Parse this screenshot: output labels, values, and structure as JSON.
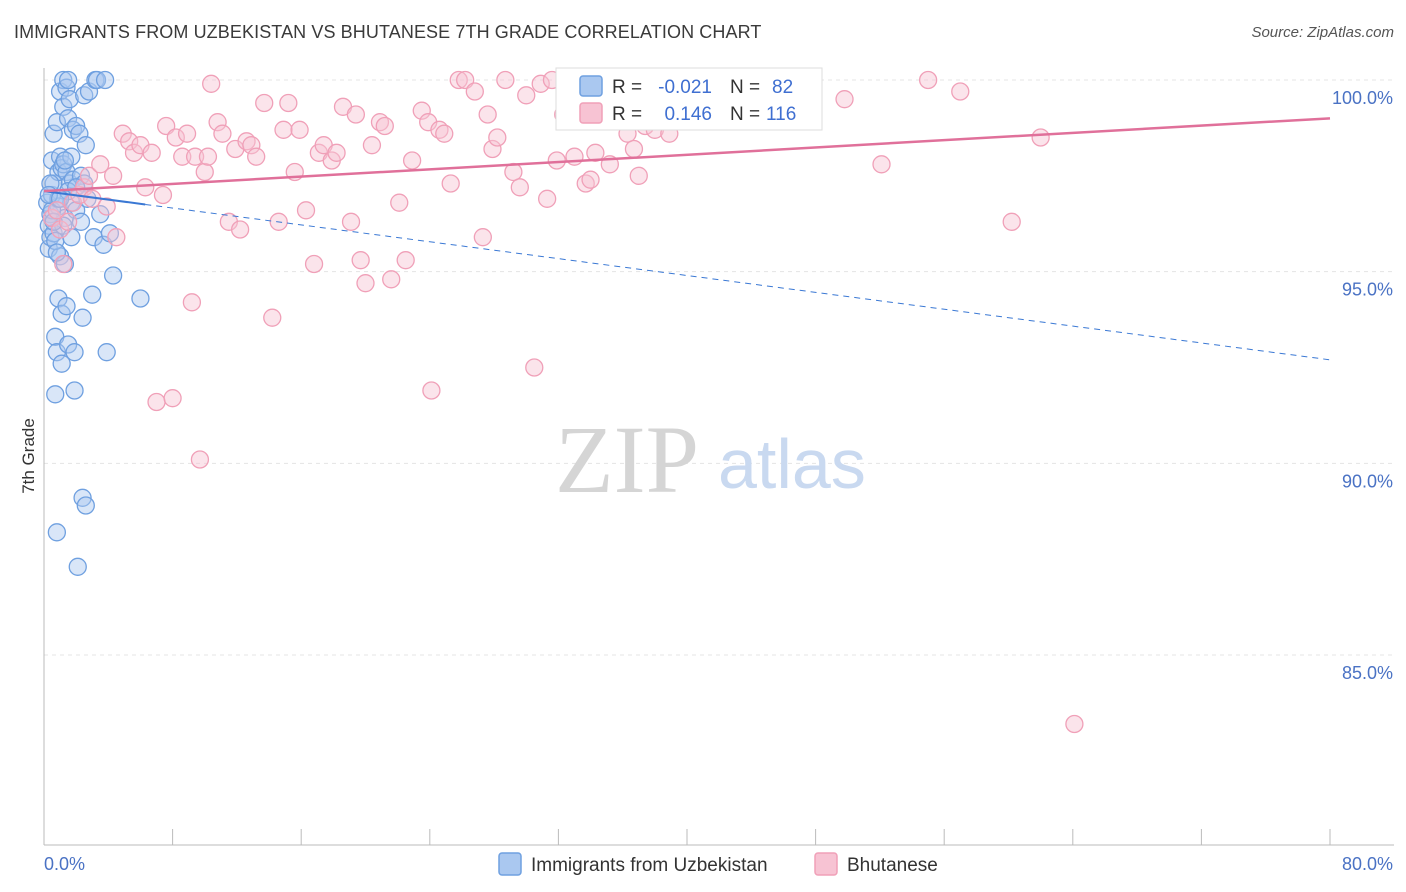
{
  "title": "IMMIGRANTS FROM UZBEKISTAN VS BHUTANESE 7TH GRADE CORRELATION CHART",
  "source": "Source: ZipAtlas.com",
  "watermark": {
    "zip": "ZIP",
    "atlas": "atlas"
  },
  "chart_data": {
    "type": "scatter",
    "title": "IMMIGRANTS FROM UZBEKISTAN VS BHUTANESE 7TH GRADE CORRELATION CHART",
    "xlabel": "",
    "ylabel": "7th Grade",
    "xlim": [
      0,
      80
    ],
    "ylim": [
      80.5,
      101.0
    ],
    "x_tick_labels": [
      "0.0%",
      "80.0%"
    ],
    "y_ticks": [
      85,
      90,
      95,
      100
    ],
    "y_tick_labels": [
      "85.0%",
      "90.0%",
      "95.0%",
      "100.0%"
    ],
    "grid": true,
    "legend": {
      "position": "top-center",
      "rows": [
        {
          "r_label": "R =",
          "r": "-0.021",
          "n_label": "N =",
          "n": "82"
        },
        {
          "r_label": "R =",
          "r": "0.146",
          "n_label": "N =",
          "n": "116"
        }
      ]
    },
    "series": [
      {
        "name": "Immigrants from Uzbekistan",
        "color": "#6fa0e0",
        "fill": "#aac8f0",
        "trend": {
          "x0": 0.0,
          "y0": 97.1,
          "x1": 80.0,
          "y1": 92.7,
          "solid_until": 6.3,
          "color": "#3a78d4"
        },
        "points": [
          [
            0.2,
            96.8
          ],
          [
            0.3,
            96.2
          ],
          [
            0.3,
            95.6
          ],
          [
            0.4,
            96.5
          ],
          [
            0.4,
            95.9
          ],
          [
            0.5,
            97.9
          ],
          [
            0.5,
            97.0
          ],
          [
            0.5,
            96.4
          ],
          [
            0.6,
            98.6
          ],
          [
            0.6,
            97.3
          ],
          [
            0.6,
            96.0
          ],
          [
            0.7,
            93.3
          ],
          [
            0.7,
            91.8
          ],
          [
            0.8,
            98.9
          ],
          [
            0.8,
            92.9
          ],
          [
            0.8,
            88.2
          ],
          [
            0.9,
            97.6
          ],
          [
            0.9,
            96.7
          ],
          [
            0.9,
            94.3
          ],
          [
            1.0,
            99.7
          ],
          [
            1.0,
            98.0
          ],
          [
            1.0,
            95.4
          ],
          [
            1.1,
            97.7
          ],
          [
            1.1,
            93.9
          ],
          [
            1.1,
            92.6
          ],
          [
            1.2,
            100.0
          ],
          [
            1.2,
            99.3
          ],
          [
            1.2,
            97.8
          ],
          [
            1.3,
            96.4
          ],
          [
            1.3,
            95.2
          ],
          [
            1.4,
            99.8
          ],
          [
            1.4,
            97.6
          ],
          [
            1.4,
            94.1
          ],
          [
            1.5,
            100.0
          ],
          [
            1.5,
            99.0
          ],
          [
            1.5,
            93.1
          ],
          [
            1.6,
            99.5
          ],
          [
            1.6,
            97.3
          ],
          [
            1.7,
            98.0
          ],
          [
            1.7,
            96.8
          ],
          [
            1.8,
            98.7
          ],
          [
            1.8,
            97.4
          ],
          [
            1.9,
            92.9
          ],
          [
            1.9,
            91.9
          ],
          [
            2.0,
            98.8
          ],
          [
            2.0,
            96.6
          ],
          [
            2.1,
            87.3
          ],
          [
            2.2,
            98.6
          ],
          [
            2.3,
            97.5
          ],
          [
            2.3,
            96.3
          ],
          [
            2.4,
            89.1
          ],
          [
            2.4,
            93.8
          ],
          [
            2.5,
            99.6
          ],
          [
            2.5,
            97.3
          ],
          [
            2.6,
            98.3
          ],
          [
            2.6,
            88.9
          ],
          [
            2.7,
            96.9
          ],
          [
            2.8,
            99.7
          ],
          [
            3.0,
            94.4
          ],
          [
            3.1,
            95.9
          ],
          [
            3.2,
            100.0
          ],
          [
            3.3,
            100.0
          ],
          [
            3.5,
            96.5
          ],
          [
            3.7,
            95.7
          ],
          [
            3.8,
            100.0
          ],
          [
            3.9,
            92.9
          ],
          [
            4.1,
            96.0
          ],
          [
            4.3,
            94.9
          ],
          [
            0.4,
            97.3
          ],
          [
            0.5,
            96.6
          ],
          [
            0.7,
            95.8
          ],
          [
            0.9,
            96.9
          ],
          [
            1.2,
            96.2
          ],
          [
            1.5,
            97.1
          ],
          [
            1.7,
            95.9
          ],
          [
            0.3,
            97.0
          ],
          [
            0.6,
            96.3
          ],
          [
            0.8,
            95.5
          ],
          [
            1.0,
            96.9
          ],
          [
            1.3,
            97.9
          ],
          [
            6.0,
            94.3
          ],
          [
            2.0,
            97.2
          ]
        ]
      },
      {
        "name": "Bhutanese",
        "color": "#f0a0b8",
        "fill": "#f7c3d3",
        "trend": {
          "x0": 0.0,
          "y0": 97.1,
          "x1": 80.0,
          "y1": 99.0,
          "color": "#e0709a"
        },
        "points": [
          [
            0.5,
            96.4
          ],
          [
            0.8,
            96.6
          ],
          [
            1.0,
            96.1
          ],
          [
            1.2,
            95.2
          ],
          [
            1.5,
            96.3
          ],
          [
            1.8,
            96.8
          ],
          [
            2.2,
            97.0
          ],
          [
            2.5,
            97.2
          ],
          [
            2.8,
            97.5
          ],
          [
            3.0,
            96.9
          ],
          [
            3.5,
            97.8
          ],
          [
            3.9,
            96.7
          ],
          [
            4.3,
            97.5
          ],
          [
            4.5,
            95.9
          ],
          [
            4.9,
            98.6
          ],
          [
            5.3,
            98.4
          ],
          [
            5.6,
            98.1
          ],
          [
            6.0,
            98.3
          ],
          [
            6.3,
            97.2
          ],
          [
            6.7,
            98.1
          ],
          [
            7.0,
            91.6
          ],
          [
            7.4,
            97.0
          ],
          [
            7.6,
            98.8
          ],
          [
            8.0,
            91.7
          ],
          [
            8.2,
            98.5
          ],
          [
            8.6,
            98.0
          ],
          [
            8.9,
            98.6
          ],
          [
            9.2,
            94.2
          ],
          [
            9.4,
            98.0
          ],
          [
            9.7,
            90.1
          ],
          [
            10.0,
            97.6
          ],
          [
            10.2,
            98.0
          ],
          [
            10.4,
            99.9
          ],
          [
            10.8,
            98.9
          ],
          [
            11.1,
            98.6
          ],
          [
            11.5,
            96.3
          ],
          [
            11.9,
            98.2
          ],
          [
            12.2,
            96.1
          ],
          [
            12.6,
            98.4
          ],
          [
            12.9,
            98.3
          ],
          [
            13.2,
            98.0
          ],
          [
            13.7,
            99.4
          ],
          [
            14.2,
            93.8
          ],
          [
            14.6,
            96.3
          ],
          [
            14.9,
            98.7
          ],
          [
            15.2,
            99.4
          ],
          [
            15.6,
            97.6
          ],
          [
            15.9,
            98.7
          ],
          [
            16.3,
            96.6
          ],
          [
            16.8,
            95.2
          ],
          [
            17.1,
            98.1
          ],
          [
            17.4,
            98.3
          ],
          [
            17.9,
            97.9
          ],
          [
            18.2,
            98.1
          ],
          [
            18.6,
            99.3
          ],
          [
            19.1,
            96.3
          ],
          [
            19.4,
            99.1
          ],
          [
            19.7,
            95.3
          ],
          [
            20.0,
            94.7
          ],
          [
            20.4,
            98.3
          ],
          [
            20.9,
            98.9
          ],
          [
            21.2,
            98.8
          ],
          [
            21.6,
            94.8
          ],
          [
            22.1,
            96.8
          ],
          [
            22.5,
            95.3
          ],
          [
            22.9,
            97.9
          ],
          [
            23.5,
            99.2
          ],
          [
            23.9,
            98.9
          ],
          [
            24.1,
            91.9
          ],
          [
            24.6,
            98.7
          ],
          [
            24.9,
            98.6
          ],
          [
            25.3,
            97.3
          ],
          [
            25.8,
            100.0
          ],
          [
            26.2,
            100.0
          ],
          [
            26.8,
            99.7
          ],
          [
            27.3,
            95.9
          ],
          [
            27.6,
            99.1
          ],
          [
            27.9,
            98.2
          ],
          [
            28.2,
            98.5
          ],
          [
            28.7,
            100.0
          ],
          [
            29.2,
            97.6
          ],
          [
            29.6,
            97.2
          ],
          [
            30.0,
            99.6
          ],
          [
            30.5,
            92.5
          ],
          [
            30.9,
            99.9
          ],
          [
            31.3,
            96.9
          ],
          [
            31.6,
            100.0
          ],
          [
            31.9,
            97.9
          ],
          [
            32.3,
            99.1
          ],
          [
            32.7,
            99.5
          ],
          [
            33.0,
            98.0
          ],
          [
            33.3,
            99.7
          ],
          [
            33.7,
            97.3
          ],
          [
            34.0,
            97.4
          ],
          [
            34.3,
            98.1
          ],
          [
            34.8,
            99.3
          ],
          [
            35.2,
            97.8
          ],
          [
            35.6,
            99.3
          ],
          [
            36.0,
            99.0
          ],
          [
            36.3,
            98.6
          ],
          [
            36.7,
            98.2
          ],
          [
            37.0,
            97.5
          ],
          [
            37.4,
            98.8
          ],
          [
            37.8,
            99.4
          ],
          [
            38.0,
            98.7
          ],
          [
            38.4,
            99.8
          ],
          [
            38.9,
            98.6
          ],
          [
            39.3,
            99.8
          ],
          [
            43.0,
            99.3
          ],
          [
            44.3,
            100.0
          ],
          [
            47.6,
            99.7
          ],
          [
            49.8,
            99.5
          ],
          [
            52.1,
            97.8
          ],
          [
            55.0,
            100.0
          ],
          [
            57.0,
            99.7
          ],
          [
            60.2,
            96.3
          ],
          [
            62.0,
            98.5
          ],
          [
            64.1,
            83.2
          ]
        ]
      }
    ]
  },
  "legend_bottom": [
    {
      "label": "Immigrants from Uzbekistan"
    },
    {
      "label": "Bhutanese"
    }
  ],
  "colors": {
    "blue_stroke": "#6fa0e0",
    "blue_fill": "#aac8f0",
    "pink_stroke": "#f0a0b8",
    "pink_fill": "#f7c3d3",
    "blue_line": "#3a78d4",
    "pink_line": "#e0709a",
    "grid": "#e4e4e4",
    "axis_text": "#4a72c4"
  }
}
